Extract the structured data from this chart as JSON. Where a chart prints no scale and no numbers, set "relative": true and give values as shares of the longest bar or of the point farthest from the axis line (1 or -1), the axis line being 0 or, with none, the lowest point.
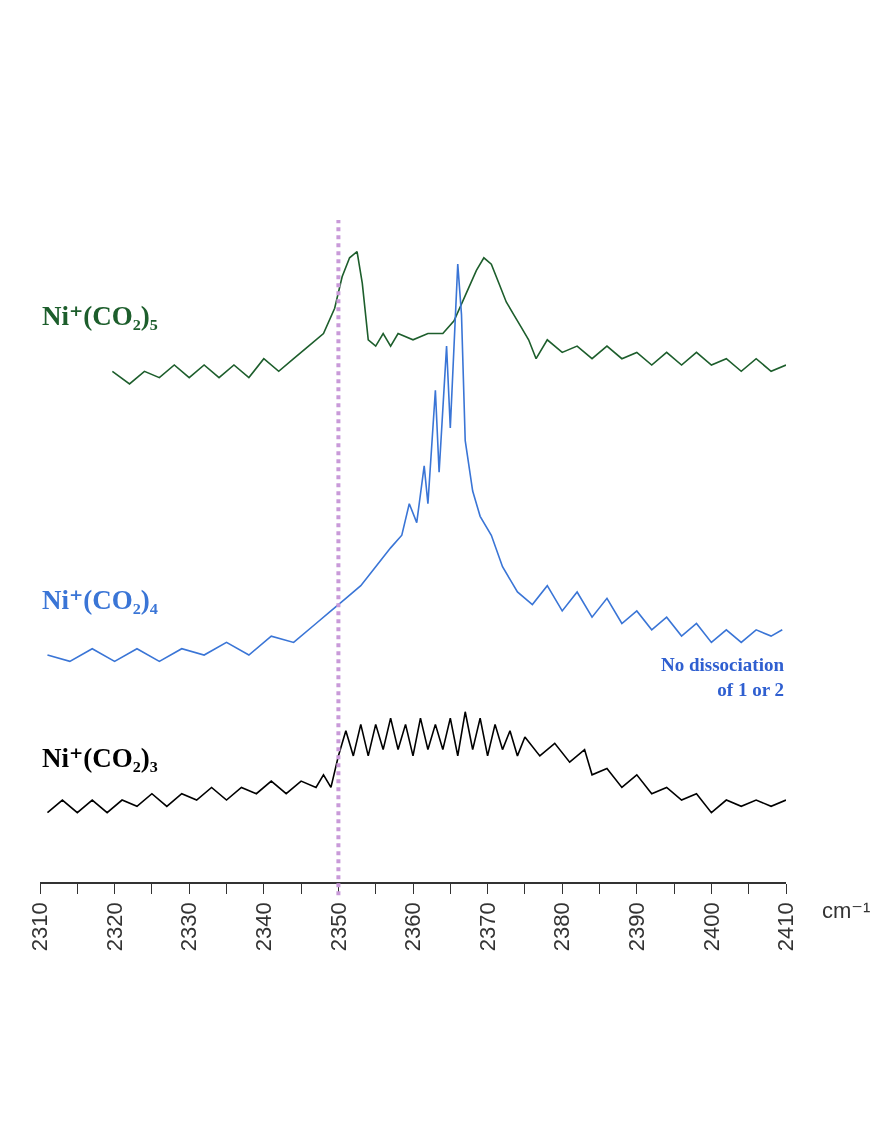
{
  "chart_data": {
    "type": "line",
    "relative": true,
    "xlabel": "cm⁻¹",
    "xlim": [
      2310,
      2410
    ],
    "xticks": [
      2310,
      {
        "value": 2315,
        "label": null
      },
      2320,
      {
        "value": 2325,
        "label": null
      },
      2330,
      {
        "value": 2335,
        "label": null
      },
      2340,
      {
        "value": 2345,
        "label": null
      },
      2350,
      {
        "value": 2355,
        "label": null
      },
      2360,
      {
        "value": 2365,
        "label": null
      },
      2370,
      {
        "value": 2375,
        "label": null
      },
      2380,
      {
        "value": 2385,
        "label": null
      },
      2390,
      {
        "value": 2395,
        "label": null
      },
      2400,
      {
        "value": 2405,
        "label": null
      },
      2410
    ],
    "grid": false,
    "legend": false,
    "marker": "none",
    "line_style": "solid",
    "ref_lines": [
      {
        "axis": "x",
        "value": 2350,
        "color": "#c99ad9",
        "line_style": "dotted"
      }
    ],
    "annotations": [
      "No dissociation\nof 1 or 2"
    ],
    "series": [
      {
        "name": "Ni⁺(CO₂)₅",
        "color": "#1d5e2c",
        "x": [
          2319.7,
          2322,
          2324,
          2326,
          2328,
          2330,
          2332,
          2334,
          2336,
          2338,
          2340,
          2342,
          2344,
          2346,
          2348,
          2349.5,
          2350.5,
          2351.5,
          2352.5,
          2353.2,
          2354,
          2355,
          2356,
          2357,
          2358,
          2360,
          2362,
          2364,
          2365.5,
          2367,
          2368.5,
          2369.5,
          2370.5,
          2371.5,
          2372.5,
          2373.5,
          2374.5,
          2375.5,
          2376.5,
          2378,
          2380,
          2382,
          2384,
          2386,
          2388,
          2390,
          2392,
          2394,
          2396,
          2398,
          2400,
          2402,
          2404,
          2406,
          2408,
          2410
        ],
        "values": [
          0.81,
          0.79,
          0.81,
          0.8,
          0.82,
          0.8,
          0.82,
          0.8,
          0.82,
          0.8,
          0.83,
          0.81,
          0.83,
          0.85,
          0.87,
          0.91,
          0.96,
          0.99,
          1.0,
          0.95,
          0.86,
          0.85,
          0.87,
          0.85,
          0.87,
          0.86,
          0.87,
          0.87,
          0.89,
          0.93,
          0.97,
          0.99,
          0.98,
          0.95,
          0.92,
          0.9,
          0.88,
          0.86,
          0.83,
          0.86,
          0.84,
          0.85,
          0.83,
          0.85,
          0.83,
          0.84,
          0.82,
          0.84,
          0.82,
          0.84,
          0.82,
          0.83,
          0.81,
          0.83,
          0.81,
          0.82
        ]
      },
      {
        "name": "Ni⁺(CO₂)₄",
        "color": "#3a75d6",
        "x": [
          2311,
          2314,
          2317,
          2320,
          2323,
          2326,
          2329,
          2332,
          2335,
          2338,
          2341,
          2344,
          2347,
          2349,
          2351,
          2353,
          2355,
          2357,
          2358.5,
          2359.5,
          2360.5,
          2361.5,
          2362,
          2363,
          2363.5,
          2364.5,
          2365,
          2366,
          2366.5,
          2367,
          2368,
          2369,
          2370.5,
          2372,
          2374,
          2376,
          2378,
          2380,
          2382,
          2384,
          2386,
          2388,
          2390,
          2392,
          2394,
          2396,
          2398,
          2400,
          2402,
          2404,
          2406,
          2408,
          2409.5
        ],
        "values": [
          0.36,
          0.35,
          0.37,
          0.35,
          0.37,
          0.35,
          0.37,
          0.36,
          0.38,
          0.36,
          0.39,
          0.38,
          0.41,
          0.43,
          0.45,
          0.47,
          0.5,
          0.53,
          0.55,
          0.6,
          0.57,
          0.66,
          0.6,
          0.78,
          0.65,
          0.85,
          0.72,
          0.98,
          0.9,
          0.7,
          0.62,
          0.58,
          0.55,
          0.5,
          0.46,
          0.44,
          0.47,
          0.43,
          0.46,
          0.42,
          0.45,
          0.41,
          0.43,
          0.4,
          0.42,
          0.39,
          0.41,
          0.38,
          0.4,
          0.38,
          0.4,
          0.39,
          0.4
        ]
      },
      {
        "name": "Ni⁺(CO₂)₃",
        "color": "#000000",
        "x": [
          2311,
          2313,
          2315,
          2317,
          2319,
          2321,
          2323,
          2325,
          2327,
          2329,
          2331,
          2333,
          2335,
          2337,
          2339,
          2341,
          2343,
          2345,
          2347,
          2348,
          2349,
          2350,
          2351,
          2352,
          2353,
          2354,
          2355,
          2356,
          2357,
          2358,
          2359,
          2360,
          2361,
          2362,
          2363,
          2364,
          2365,
          2366,
          2367,
          2368,
          2369,
          2370,
          2371,
          2372,
          2373,
          2374,
          2375,
          2377,
          2379,
          2381,
          2383,
          2384,
          2386,
          2388,
          2390,
          2392,
          2394,
          2396,
          2398,
          2400,
          2402,
          2404,
          2406,
          2408,
          2410
        ],
        "values": [
          0.11,
          0.13,
          0.11,
          0.13,
          0.11,
          0.13,
          0.12,
          0.14,
          0.12,
          0.14,
          0.13,
          0.15,
          0.13,
          0.15,
          0.14,
          0.16,
          0.14,
          0.16,
          0.15,
          0.17,
          0.15,
          0.2,
          0.24,
          0.2,
          0.25,
          0.2,
          0.25,
          0.21,
          0.26,
          0.21,
          0.25,
          0.2,
          0.26,
          0.21,
          0.25,
          0.21,
          0.26,
          0.2,
          0.27,
          0.21,
          0.26,
          0.2,
          0.25,
          0.21,
          0.24,
          0.2,
          0.23,
          0.2,
          0.22,
          0.19,
          0.21,
          0.17,
          0.18,
          0.15,
          0.17,
          0.14,
          0.15,
          0.13,
          0.14,
          0.11,
          0.13,
          0.12,
          0.13,
          0.12,
          0.13
        ]
      }
    ]
  }
}
